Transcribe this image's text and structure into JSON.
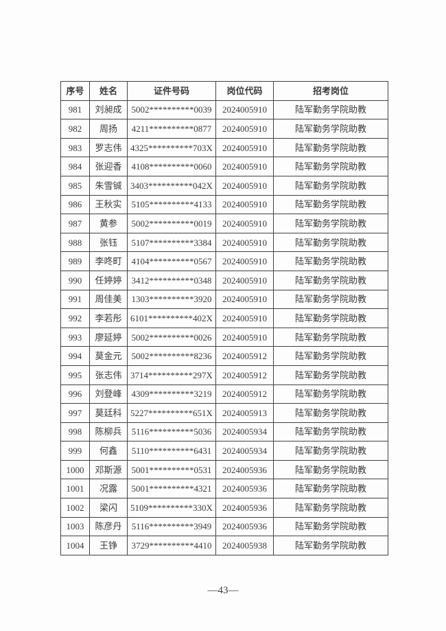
{
  "table": {
    "headers": {
      "serial": "序号",
      "name": "姓名",
      "id_number": "证件号码",
      "position_code": "岗位代码",
      "position": "招考岗位"
    },
    "rows": [
      {
        "serial": "981",
        "name": "刘昶成",
        "id_number": "5002**********0039",
        "position_code": "2024005910",
        "position": "陆军勤务学院助教"
      },
      {
        "serial": "982",
        "name": "周扬",
        "id_number": "4211**********0877",
        "position_code": "2024005910",
        "position": "陆军勤务学院助教"
      },
      {
        "serial": "983",
        "name": "罗志伟",
        "id_number": "4325**********703X",
        "position_code": "2024005910",
        "position": "陆军勤务学院助教"
      },
      {
        "serial": "984",
        "name": "张迎香",
        "id_number": "4108**********0060",
        "position_code": "2024005910",
        "position": "陆军勤务学院助教"
      },
      {
        "serial": "985",
        "name": "朱雪铖",
        "id_number": "3403**********042X",
        "position_code": "2024005910",
        "position": "陆军勤务学院助教"
      },
      {
        "serial": "986",
        "name": "王秋实",
        "id_number": "5105**********4133",
        "position_code": "2024005910",
        "position": "陆军勤务学院助教"
      },
      {
        "serial": "987",
        "name": "黄参",
        "id_number": "5002**********0019",
        "position_code": "2024005910",
        "position": "陆军勤务学院助教"
      },
      {
        "serial": "988",
        "name": "张钰",
        "id_number": "5107**********3384",
        "position_code": "2024005910",
        "position": "陆军勤务学院助教"
      },
      {
        "serial": "989",
        "name": "李咚町",
        "id_number": "4104**********0567",
        "position_code": "2024005910",
        "position": "陆军勤务学院助教"
      },
      {
        "serial": "990",
        "name": "任婷婷",
        "id_number": "3412**********0348",
        "position_code": "2024005910",
        "position": "陆军勤务学院助教"
      },
      {
        "serial": "991",
        "name": "周佳美",
        "id_number": "1303**********3920",
        "position_code": "2024005910",
        "position": "陆军勤务学院助教"
      },
      {
        "serial": "992",
        "name": "李若彤",
        "id_number": "6101**********402X",
        "position_code": "2024005910",
        "position": "陆军勤务学院助教"
      },
      {
        "serial": "993",
        "name": "廖延婷",
        "id_number": "5002**********0026",
        "position_code": "2024005910",
        "position": "陆军勤务学院助教"
      },
      {
        "serial": "994",
        "name": "莫金元",
        "id_number": "5002**********8236",
        "position_code": "2024005912",
        "position": "陆军勤务学院助教"
      },
      {
        "serial": "995",
        "name": "张志伟",
        "id_number": "3714**********297X",
        "position_code": "2024005912",
        "position": "陆军勤务学院助教"
      },
      {
        "serial": "996",
        "name": "刘登峰",
        "id_number": "4309**********3219",
        "position_code": "2024005912",
        "position": "陆军勤务学院助教"
      },
      {
        "serial": "997",
        "name": "莫廷科",
        "id_number": "5227**********651X",
        "position_code": "2024005913",
        "position": "陆军勤务学院助教"
      },
      {
        "serial": "998",
        "name": "陈柳兵",
        "id_number": "5116**********5036",
        "position_code": "2024005934",
        "position": "陆军勤务学院助教"
      },
      {
        "serial": "999",
        "name": "何鑫",
        "id_number": "5110**********6431",
        "position_code": "2024005934",
        "position": "陆军勤务学院助教"
      },
      {
        "serial": "1000",
        "name": "邓斯源",
        "id_number": "5001**********0531",
        "position_code": "2024005936",
        "position": "陆军勤务学院助教"
      },
      {
        "serial": "1001",
        "name": "况露",
        "id_number": "5001**********4321",
        "position_code": "2024005936",
        "position": "陆军勤务学院助教"
      },
      {
        "serial": "1002",
        "name": "梁闪",
        "id_number": "5109**********330X",
        "position_code": "2024005936",
        "position": "陆军勤务学院助教"
      },
      {
        "serial": "1003",
        "name": "陈彦丹",
        "id_number": "5116**********3949",
        "position_code": "2024005936",
        "position": "陆军勤务学院助教"
      },
      {
        "serial": "1004",
        "name": "王铮",
        "id_number": "3729**********4410",
        "position_code": "2024005938",
        "position": "陆军勤务学院助教"
      }
    ]
  },
  "footer": {
    "page_number": "—43—"
  },
  "colors": {
    "page_background": "#fdfdfd",
    "border": "#414141",
    "text": "#3a3a3a"
  }
}
